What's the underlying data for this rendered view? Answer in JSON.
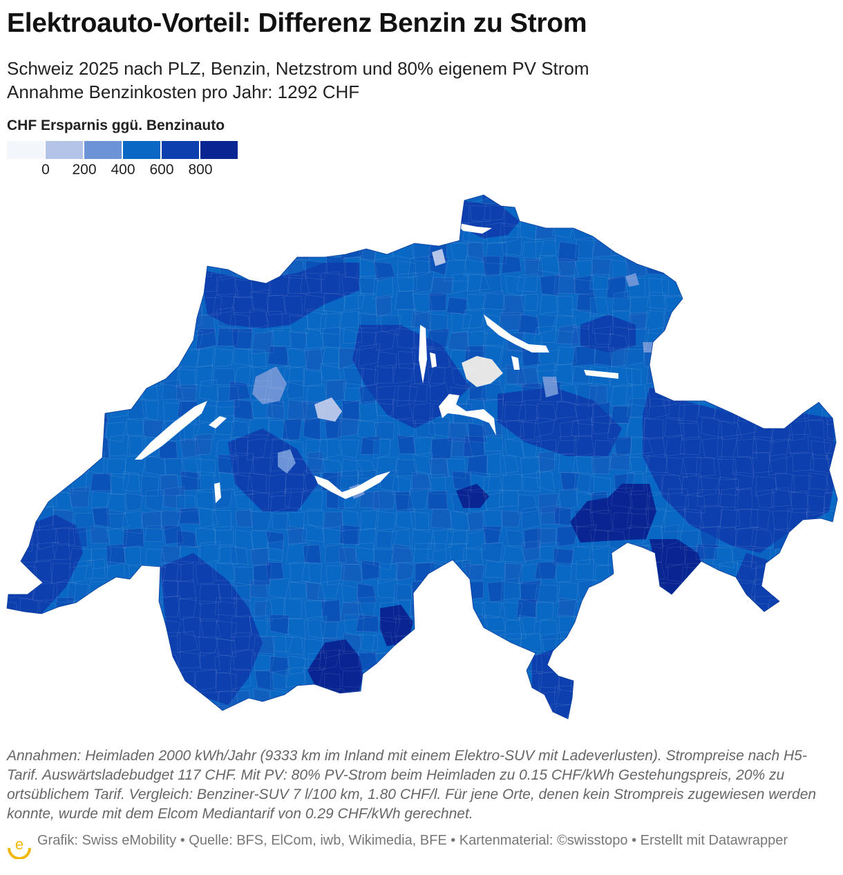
{
  "title": "Elektroauto-Vorteil: Differenz Benzin zu Strom",
  "subtitle_line1": "Schweiz 2025 nach PLZ, Benzin, Netzstrom und 80% eigenem PV Strom",
  "subtitle_line2": "Annahme Benzinkosten pro Jahr: 1292 CHF",
  "legend": {
    "title": "CHF Ersparnis ggü. Benzinauto",
    "colors": [
      "#f3f6fb",
      "#b4c4e8",
      "#6c93d6",
      "#0a68c4",
      "#0d3fae",
      "#082592"
    ],
    "ticks": [
      "0",
      "200",
      "400",
      "600",
      "800"
    ]
  },
  "map": {
    "region": "Schweiz",
    "lake_color": "#ffffff",
    "no_data_color": "#e6e6e6"
  },
  "notes": "Annahmen: Heimladen 2000 kWh/Jahr (9333 km im Inland mit einem Elektro-SUV mit Ladeverlusten). Strompreise nach H5-Tarif. Auswärtsladebudget 117 CHF. Mit PV: 80% PV-Strom beim Heimladen zu 0.15 CHF/kWh Gestehungspreis, 20% zu ortsüblichem Tarif. Vergleich: Benziner-SUV 7 l/100 km, 1.80 CHF/l. Für jene Orte, denen kein Strompreis zugewiesen werden konnte, wurde mit dem Elcom Mediantarif von 0.29 CHF/kWh gerechnet.",
  "footer": "Grafik: Swiss eMobility • Quelle: BFS, ElCom, iwb, Wikimedia, BFE • Kartenmaterial: ©swisstopo • Erstellt mit Datawrapper",
  "logo_letter": "e"
}
